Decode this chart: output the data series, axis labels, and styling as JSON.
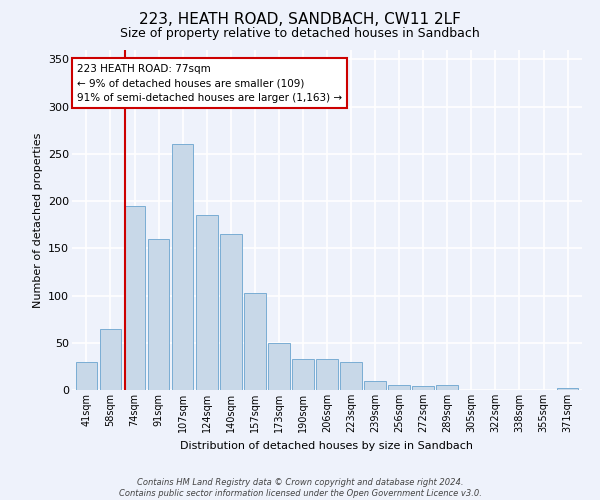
{
  "title": "223, HEATH ROAD, SANDBACH, CW11 2LF",
  "subtitle": "Size of property relative to detached houses in Sandbach",
  "xlabel": "Distribution of detached houses by size in Sandbach",
  "ylabel": "Number of detached properties",
  "categories": [
    "41sqm",
    "58sqm",
    "74sqm",
    "91sqm",
    "107sqm",
    "124sqm",
    "140sqm",
    "157sqm",
    "173sqm",
    "190sqm",
    "206sqm",
    "223sqm",
    "239sqm",
    "256sqm",
    "272sqm",
    "289sqm",
    "305sqm",
    "322sqm",
    "338sqm",
    "355sqm",
    "371sqm"
  ],
  "values": [
    30,
    65,
    195,
    160,
    260,
    185,
    165,
    103,
    50,
    33,
    33,
    30,
    10,
    5,
    4,
    5,
    0,
    0,
    0,
    0,
    2
  ],
  "bar_color": "#c8d8e8",
  "bar_edge_color": "#7aadd4",
  "annotation_box_text": "223 HEATH ROAD: 77sqm\n← 9% of detached houses are smaller (109)\n91% of semi-detached houses are larger (1,163) →",
  "annotation_box_color": "#ffffff",
  "annotation_box_edge_color": "#cc0000",
  "vline_x_index": 2,
  "vline_color": "#cc0000",
  "ylim": [
    0,
    360
  ],
  "yticks": [
    0,
    50,
    100,
    150,
    200,
    250,
    300,
    350
  ],
  "background_color": "#eef2fb",
  "grid_color": "#ffffff",
  "footer": "Contains HM Land Registry data © Crown copyright and database right 2024.\nContains public sector information licensed under the Open Government Licence v3.0."
}
